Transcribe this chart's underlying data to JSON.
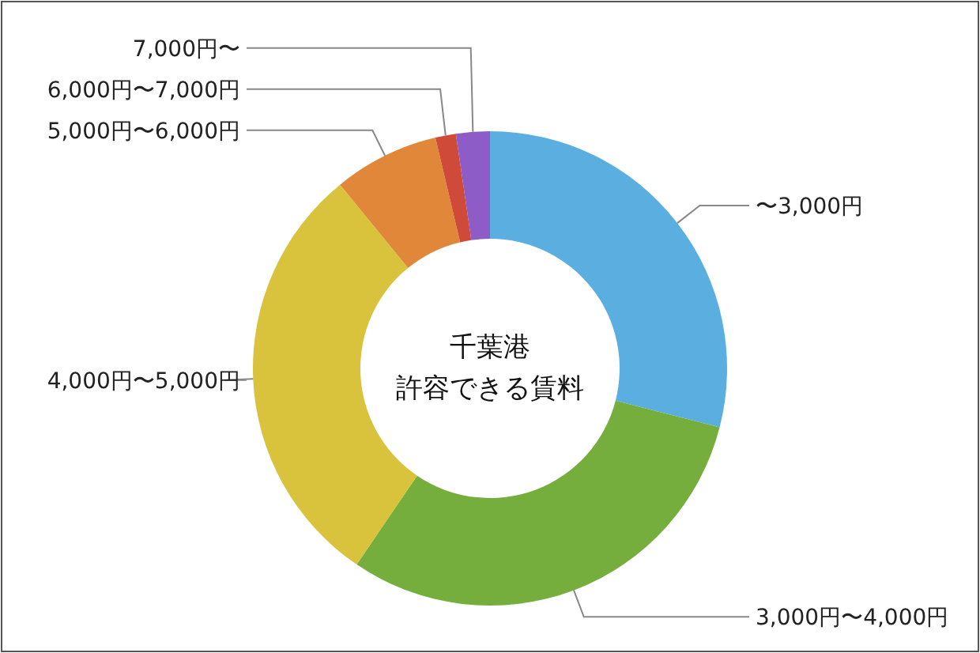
{
  "chart_data": {
    "type": "donut",
    "title": "千葉港",
    "subtitle": "許容できる賃料",
    "categories": [
      "〜3,000円",
      "3,000円〜4,000円",
      "4,000円〜5,000円",
      "5,000円〜6,000円",
      "6,000円〜7,000円",
      "7,000円〜"
    ],
    "values": [
      29,
      30.5,
      29.6,
      7.2,
      1.4,
      2.3
    ],
    "colors": [
      "#5aaee0",
      "#76ae3e",
      "#d9c23c",
      "#e0873a",
      "#d04a3a",
      "#8d5cc7"
    ],
    "legend": false
  }
}
